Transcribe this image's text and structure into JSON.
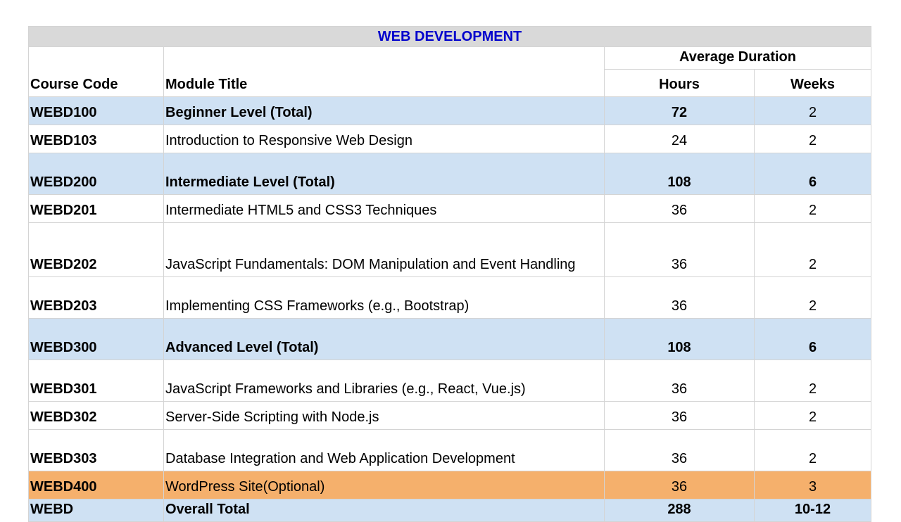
{
  "title": "WEB DEVELOPMENT",
  "headers": {
    "course_code": "Course Code",
    "module_title": "Module Title",
    "average_duration": "Average Duration",
    "hours": "Hours",
    "weeks": "Weeks"
  },
  "rows": [
    {
      "code": "WEBD100",
      "title": "Beginner Level (Total)",
      "hours": "72",
      "weeks": "2",
      "style": "total"
    },
    {
      "code": "WEBD103",
      "title": "Introduction to Responsive Web Design",
      "hours": "24",
      "weeks": "2",
      "style": "normal"
    },
    {
      "code": "WEBD200",
      "title": "Intermediate Level (Total)",
      "hours": "108",
      "weeks": "6",
      "style": "total"
    },
    {
      "code": "WEBD201",
      "title": "Intermediate HTML5 and CSS3 Techniques",
      "hours": "36",
      "weeks": "2",
      "style": "normal"
    },
    {
      "code": "WEBD202",
      "title": "JavaScript Fundamentals: DOM Manipulation and Event Handling",
      "hours": "36",
      "weeks": "2",
      "style": "normal"
    },
    {
      "code": "WEBD203",
      "title": "Implementing CSS Frameworks (e.g., Bootstrap)",
      "hours": "36",
      "weeks": "2",
      "style": "normal"
    },
    {
      "code": "WEBD300",
      "title": "Advanced Level (Total)",
      "hours": "108",
      "weeks": "6",
      "style": "total"
    },
    {
      "code": "WEBD301",
      "title": "JavaScript Frameworks and Libraries (e.g., React, Vue.js)",
      "hours": "36",
      "weeks": "2",
      "style": "normal"
    },
    {
      "code": "WEBD302",
      "title": "Server-Side Scripting with Node.js",
      "hours": "36",
      "weeks": "2",
      "style": "normal"
    },
    {
      "code": "WEBD303",
      "title": "Database Integration and Web Application Development",
      "hours": "36",
      "weeks": "2",
      "style": "normal"
    },
    {
      "code": "WEBD400",
      "title": "WordPress Site(Optional)",
      "hours": "36",
      "weeks": "3",
      "style": "optional"
    },
    {
      "code": "WEBD",
      "title": "Overall Total",
      "hours": "288",
      "weeks": "10-12",
      "style": "grand"
    }
  ],
  "colors": {
    "title_bg": "#d9d9d9",
    "title_text": "#0000cc",
    "total_row_bg": "#cfe1f3",
    "optional_row_bg": "#f5b06c",
    "grid": "#d4d4d4"
  }
}
